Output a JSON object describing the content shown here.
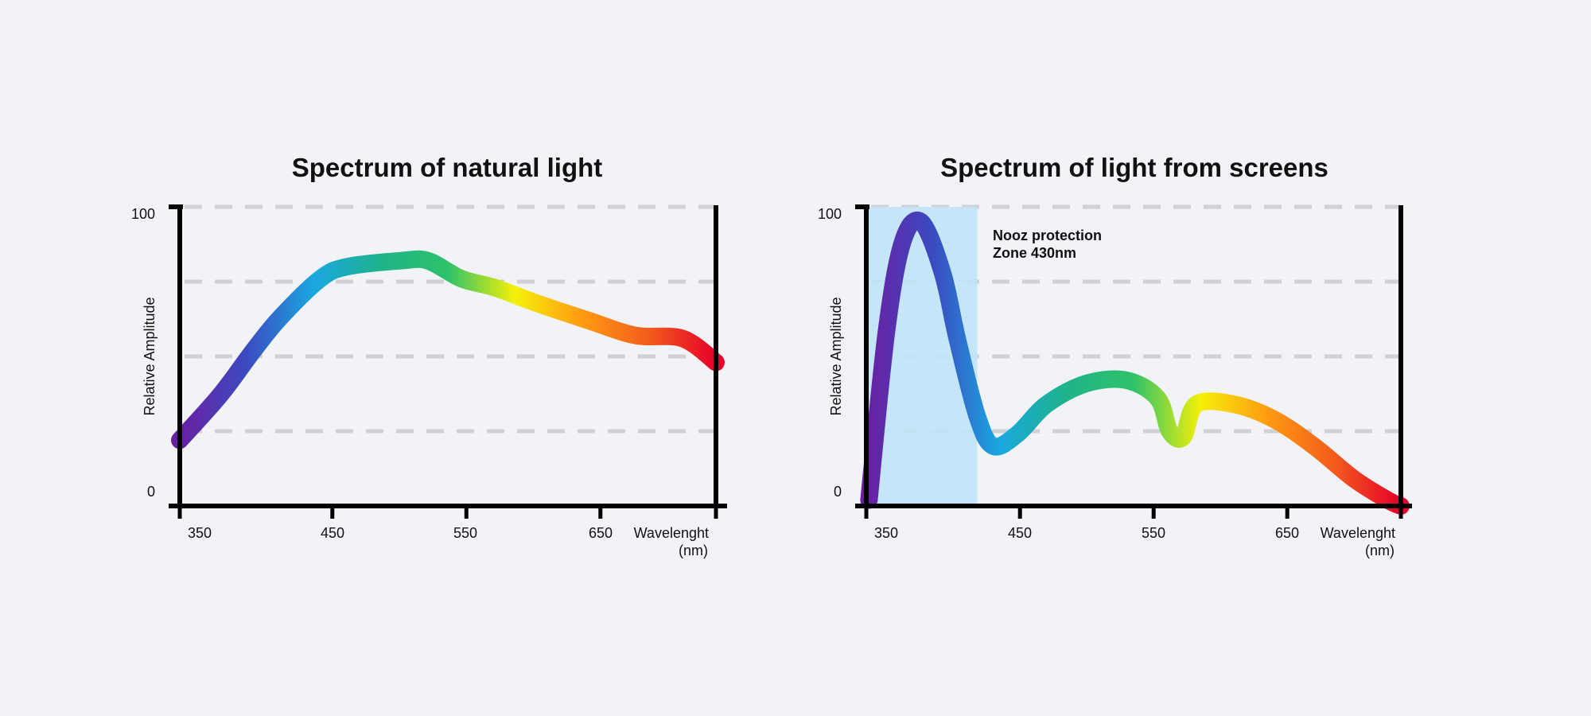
{
  "colors": {
    "background": "#f1f3f7",
    "axis": "#000000",
    "grid": "#cfd1d6",
    "protection_zone": "#bfe4f7",
    "spectrum_gradient": [
      "#6a1fa3",
      "#3b4bc0",
      "#1aa8e0",
      "#1fb38a",
      "#2ec26a",
      "#f5f00a",
      "#ff9b12",
      "#f25c1c",
      "#e6002a"
    ]
  },
  "chart_data": [
    {
      "type": "line",
      "title": "Spectrum of natural light",
      "ylabel": "Relative Amplitude",
      "xlabel": "Wavelenght",
      "xlabel_unit": "(nm)",
      "x_ticks": [
        "350",
        "450",
        "550",
        "650"
      ],
      "y_ticks": [
        "100",
        "0"
      ],
      "xlim": [
        335,
        735
      ],
      "ylim": [
        0,
        100
      ],
      "grid": "horizontal dashed",
      "x": [
        335,
        365,
        390,
        410,
        440,
        460,
        500,
        520,
        545,
        570,
        600,
        640,
        675,
        710,
        735
      ],
      "y": [
        22,
        37,
        52,
        63,
        76,
        80,
        82,
        82,
        76,
        73,
        68,
        62,
        57,
        56,
        48
      ]
    },
    {
      "type": "line",
      "title": "Spectrum of light from screens",
      "ylabel": "Relative Amplitude",
      "xlabel": "Wavelenght",
      "xlabel_unit": "(nm)",
      "x_ticks": [
        "350",
        "450",
        "550",
        "650"
      ],
      "y_ticks": [
        "100",
        "0"
      ],
      "xlim": [
        335,
        735
      ],
      "ylim": [
        0,
        100
      ],
      "grid": "horizontal dashed",
      "highlight": {
        "label_line1": "Nooz protection",
        "label_line2": "Zone 430nm",
        "x_range": [
          335,
          418
        ]
      },
      "x": [
        337,
        350,
        362,
        376,
        392,
        403,
        418,
        430,
        448,
        470,
        500,
        530,
        553,
        562,
        572,
        582,
        610,
        640,
        670,
        700,
        725,
        735
      ],
      "y": [
        2,
        58,
        88,
        95,
        78,
        56,
        30,
        20,
        24,
        34,
        41,
        42,
        36,
        25,
        23,
        34,
        34,
        29,
        20,
        9,
        2,
        0
      ]
    }
  ]
}
